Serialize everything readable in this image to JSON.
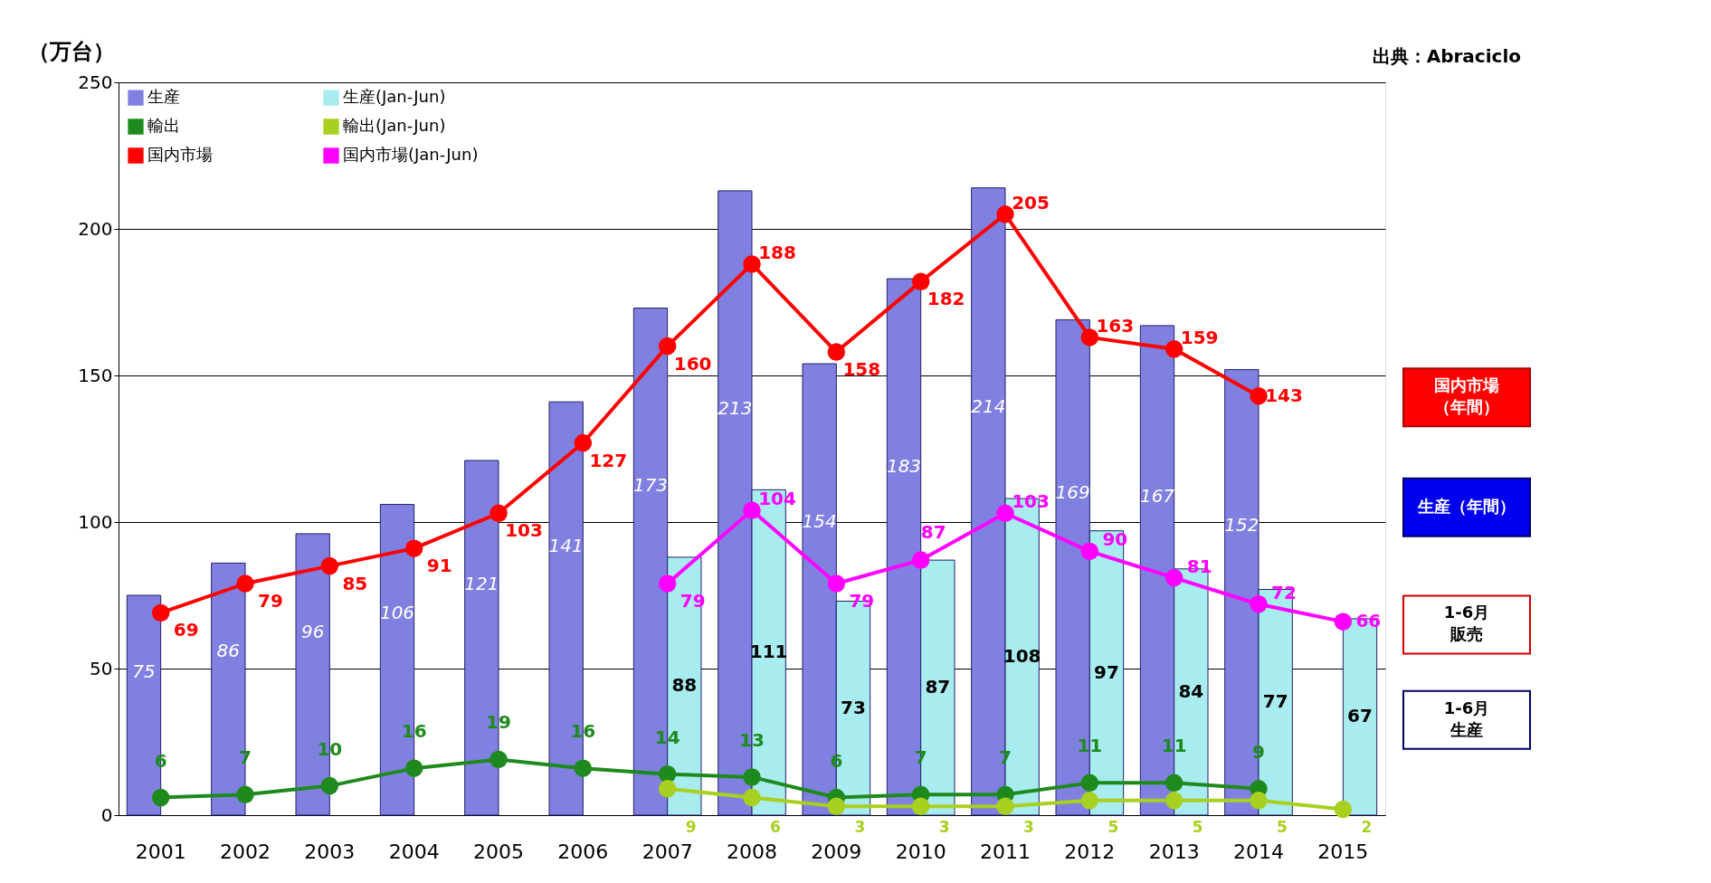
{
  "chart_data": {
    "type": "bar",
    "ylabel": "（万台）",
    "categories": [
      "2001",
      "2002",
      "2003",
      "2004",
      "2005",
      "2006",
      "2007",
      "2008",
      "2009",
      "2010",
      "2011",
      "2012",
      "2013",
      "2014",
      "2015"
    ],
    "series": [
      {
        "name": "生産",
        "color": "#8080e0",
        "values": [
          75,
          86,
          96,
          106,
          121,
          141,
          173,
          213,
          154,
          183,
          214,
          169,
          167,
          152,
          null
        ]
      },
      {
        "name": "生産(Jan-Jun)",
        "color": "#a8ecf0",
        "values": [
          null,
          null,
          null,
          null,
          null,
          null,
          88,
          111,
          73,
          87,
          108,
          97,
          84,
          77,
          67
        ]
      },
      {
        "type": "line",
        "name": "輸出",
        "color": "#1e8a1e",
        "values": [
          6,
          7,
          10,
          16,
          19,
          16,
          14,
          13,
          6,
          7,
          7,
          11,
          11,
          9,
          null
        ]
      },
      {
        "type": "line",
        "name": "輸出(Jan-Jun)",
        "color": "#a8d020",
        "values": [
          null,
          null,
          null,
          null,
          null,
          null,
          9,
          6,
          3,
          3,
          3,
          5,
          5,
          5,
          2
        ]
      },
      {
        "type": "line",
        "name": "国内市場",
        "color": "#ff0000",
        "values": [
          69,
          79,
          85,
          91,
          103,
          127,
          160,
          188,
          158,
          182,
          205,
          163,
          159,
          143,
          null
        ]
      },
      {
        "type": "line",
        "name": "国内市場(Jan-Jun)",
        "color": "#ff00ff",
        "values": [
          null,
          null,
          null,
          null,
          null,
          null,
          79,
          104,
          79,
          87,
          103,
          90,
          81,
          72,
          66
        ]
      }
    ],
    "ylim": [
      0,
      250
    ],
    "yticks": [
      0,
      50,
      100,
      150,
      200,
      250
    ],
    "grid": "y",
    "legend": "top left",
    "marker": "circle",
    "data_labels": true,
    "annotations": [
      "出典：Abraciclo",
      "国内市場",
      "（年間）",
      "生産（年間）",
      "1-6月",
      "販売",
      "1-6月",
      "生産"
    ]
  }
}
